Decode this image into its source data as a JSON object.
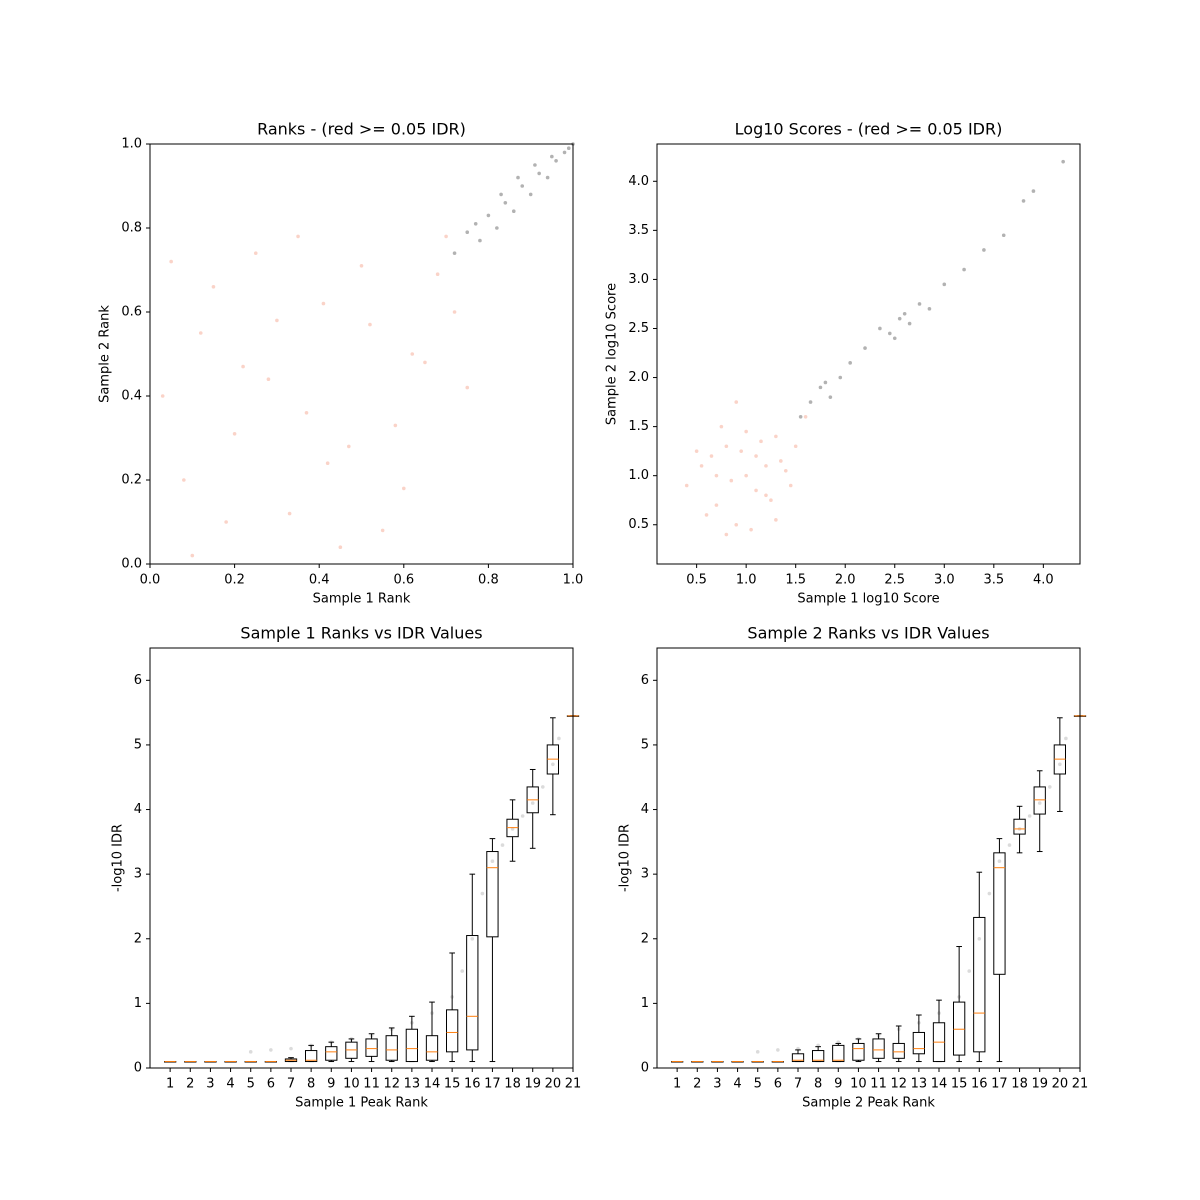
{
  "chart_data": [
    {
      "type": "scatter",
      "title": "Ranks - (red >= 0.05 IDR)",
      "xlabel": "Sample 1 Rank",
      "ylabel": "Sample 2 Rank",
      "xlim": [
        0,
        1
      ],
      "ylim": [
        0,
        1
      ],
      "xticks": [
        {
          "value": 0,
          "label": "0.0"
        },
        0.2,
        0.4,
        0.6,
        0.8,
        {
          "value": 1,
          "label": "1.0"
        }
      ],
      "yticks": [
        {
          "value": 0,
          "label": "0.0"
        },
        0.2,
        0.4,
        0.6,
        0.8,
        {
          "value": 1,
          "label": "1.0"
        }
      ],
      "series": [
        {
          "color": "#f08060",
          "x": [
            0.05,
            0.12,
            0.2,
            0.28,
            0.33,
            0.41,
            0.47,
            0.55,
            0.62,
            0.7,
            0.08,
            0.15,
            0.25,
            0.37,
            0.45,
            0.52,
            0.6,
            0.68,
            0.75,
            0.03,
            0.18,
            0.3,
            0.42,
            0.5,
            0.58,
            0.65,
            0.72,
            0.1,
            0.22,
            0.35
          ],
          "values": [
            0.72,
            0.55,
            0.31,
            0.44,
            0.12,
            0.62,
            0.28,
            0.08,
            0.5,
            0.78,
            0.2,
            0.66,
            0.74,
            0.36,
            0.04,
            0.57,
            0.18,
            0.69,
            0.42,
            0.4,
            0.1,
            0.58,
            0.24,
            0.71,
            0.33,
            0.48,
            0.6,
            0.02,
            0.47,
            0.78
          ]
        },
        {
          "color": "#222222",
          "x": [
            0.72,
            0.75,
            0.78,
            0.8,
            0.82,
            0.84,
            0.86,
            0.88,
            0.9,
            0.92,
            0.94,
            0.96,
            0.98,
            1.0,
            0.77,
            0.83,
            0.87,
            0.91,
            0.95,
            0.99
          ],
          "values": [
            0.74,
            0.79,
            0.77,
            0.83,
            0.8,
            0.86,
            0.84,
            0.9,
            0.88,
            0.93,
            0.92,
            0.96,
            0.98,
            1.0,
            0.81,
            0.88,
            0.92,
            0.95,
            0.97,
            0.99
          ]
        }
      ]
    },
    {
      "type": "scatter",
      "title": "Log10 Scores - (red >= 0.05 IDR)",
      "xlabel": "Sample 1 log10 Score",
      "ylabel": "Sample 2 log10 Score",
      "xlim": [
        0.1,
        4.37
      ],
      "ylim": [
        0.1,
        4.38
      ],
      "xticks": [
        0.5,
        {
          "value": 1,
          "label": "1.0"
        },
        1.5,
        {
          "value": 2,
          "label": "2.0"
        },
        2.5,
        {
          "value": 3,
          "label": "3.0"
        },
        3.5,
        {
          "value": 4,
          "label": "4.0"
        }
      ],
      "yticks": [
        0.5,
        {
          "value": 1,
          "label": "1.0"
        },
        1.5,
        {
          "value": 2,
          "label": "2.0"
        },
        2.5,
        {
          "value": 3,
          "label": "3.0"
        },
        3.5,
        {
          "value": 4,
          "label": "4.0"
        }
      ],
      "series": [
        {
          "color": "#f08060",
          "x": [
            0.4,
            0.55,
            0.7,
            0.8,
            0.9,
            1.0,
            1.1,
            1.2,
            1.3,
            1.4,
            0.6,
            0.75,
            0.85,
            0.95,
            1.05,
            1.15,
            1.25,
            1.35,
            1.5,
            1.6,
            0.5,
            0.9,
            1.1,
            1.3,
            0.7,
            1.0,
            1.2,
            0.8,
            1.45,
            0.65
          ],
          "values": [
            0.9,
            1.1,
            0.7,
            1.3,
            0.5,
            1.0,
            1.2,
            0.8,
            1.4,
            1.05,
            0.6,
            1.5,
            0.95,
            1.25,
            0.45,
            1.35,
            0.75,
            1.15,
            1.3,
            1.6,
            1.25,
            1.75,
            0.85,
            0.55,
            1.0,
            1.45,
            1.1,
            0.4,
            0.9,
            1.2
          ]
        },
        {
          "color": "#222222",
          "x": [
            1.55,
            1.65,
            1.75,
            1.85,
            1.95,
            2.05,
            2.2,
            2.35,
            2.45,
            2.55,
            2.65,
            2.75,
            2.85,
            3.0,
            3.2,
            3.4,
            3.6,
            3.8,
            3.9,
            4.2,
            2.5,
            2.6,
            1.8
          ],
          "values": [
            1.6,
            1.75,
            1.9,
            1.8,
            2.0,
            2.15,
            2.3,
            2.5,
            2.45,
            2.6,
            2.55,
            2.75,
            2.7,
            2.95,
            3.1,
            3.3,
            3.45,
            3.8,
            3.9,
            4.2,
            2.4,
            2.65,
            1.95
          ]
        }
      ]
    },
    {
      "type": "box",
      "title": "Sample 1 Ranks vs IDR Values",
      "xlabel": "Sample 1 Peak Rank",
      "ylabel": "-log10 IDR",
      "xlim": [
        0,
        21
      ],
      "ylim": [
        0,
        6.5
      ],
      "xticks": [
        1,
        2,
        3,
        4,
        5,
        6,
        7,
        8,
        9,
        10,
        11,
        12,
        13,
        14,
        15,
        16,
        17,
        18,
        19,
        20,
        21
      ],
      "yticks": [
        0,
        1,
        2,
        3,
        4,
        5,
        6
      ],
      "box_color": "#000000",
      "median_color": "#ff7f0e",
      "series": [
        {
          "color": "#999999",
          "x": [
            5,
            6,
            7,
            8,
            9,
            10,
            11,
            12,
            13,
            14,
            15,
            15.5,
            16,
            16.5,
            17,
            17.5,
            18,
            18.5,
            19,
            19.5,
            20,
            20.3
          ],
          "values": [
            0.25,
            0.28,
            0.3,
            0.35,
            0.4,
            0.45,
            0.5,
            0.6,
            0.7,
            0.85,
            1.1,
            1.5,
            2.0,
            2.7,
            3.2,
            3.45,
            3.7,
            3.9,
            4.1,
            4.35,
            4.7,
            5.1
          ]
        }
      ],
      "x": [
        1,
        2,
        3,
        4,
        5,
        6,
        7,
        8,
        9,
        10,
        11,
        12,
        13,
        14,
        15,
        16,
        17,
        18,
        19,
        20,
        21
      ],
      "boxes": [
        {
          "low": 0.1,
          "q1": 0.1,
          "median": 0.1,
          "q3": 0.1,
          "high": 0.1
        },
        {
          "low": 0.1,
          "q1": 0.1,
          "median": 0.1,
          "q3": 0.1,
          "high": 0.1
        },
        {
          "low": 0.1,
          "q1": 0.1,
          "median": 0.1,
          "q3": 0.1,
          "high": 0.1
        },
        {
          "low": 0.1,
          "q1": 0.1,
          "median": 0.1,
          "q3": 0.1,
          "high": 0.1
        },
        {
          "low": 0.1,
          "q1": 0.1,
          "median": 0.1,
          "q3": 0.1,
          "high": 0.1
        },
        {
          "low": 0.1,
          "q1": 0.1,
          "median": 0.1,
          "q3": 0.1,
          "high": 0.1
        },
        {
          "low": 0.1,
          "q1": 0.1,
          "median": 0.12,
          "q3": 0.14,
          "high": 0.16
        },
        {
          "low": 0.1,
          "q1": 0.1,
          "median": 0.12,
          "q3": 0.27,
          "high": 0.35
        },
        {
          "low": 0.1,
          "q1": 0.12,
          "median": 0.25,
          "q3": 0.33,
          "high": 0.4
        },
        {
          "low": 0.1,
          "q1": 0.15,
          "median": 0.28,
          "q3": 0.4,
          "high": 0.45
        },
        {
          "low": 0.1,
          "q1": 0.18,
          "median": 0.3,
          "q3": 0.45,
          "high": 0.53
        },
        {
          "low": 0.1,
          "q1": 0.12,
          "median": 0.28,
          "q3": 0.5,
          "high": 0.62
        },
        {
          "low": 0.1,
          "q1": 0.1,
          "median": 0.3,
          "q3": 0.6,
          "high": 0.8
        },
        {
          "low": 0.1,
          "q1": 0.12,
          "median": 0.25,
          "q3": 0.5,
          "high": 1.02
        },
        {
          "low": 0.1,
          "q1": 0.25,
          "median": 0.55,
          "q3": 0.9,
          "high": 1.78
        },
        {
          "low": 0.1,
          "q1": 0.28,
          "median": 0.8,
          "q3": 2.05,
          "high": 3.0
        },
        {
          "low": 0.1,
          "q1": 2.03,
          "median": 3.1,
          "q3": 3.35,
          "high": 3.55
        },
        {
          "low": 3.2,
          "q1": 3.58,
          "median": 3.72,
          "q3": 3.85,
          "high": 4.15
        },
        {
          "low": 3.4,
          "q1": 3.95,
          "median": 4.15,
          "q3": 4.35,
          "high": 4.62
        },
        {
          "low": 3.92,
          "q1": 4.55,
          "median": 4.78,
          "q3": 5.0,
          "high": 5.42
        },
        {
          "low": 5.45,
          "q1": 5.45,
          "median": 5.45,
          "q3": 5.45,
          "high": 5.45
        }
      ]
    },
    {
      "type": "box",
      "title": "Sample 2 Ranks vs IDR Values",
      "xlabel": "Sample 2 Peak Rank",
      "ylabel": "-log10 IDR",
      "xlim": [
        0,
        21
      ],
      "ylim": [
        0,
        6.5
      ],
      "xticks": [
        1,
        2,
        3,
        4,
        5,
        6,
        7,
        8,
        9,
        10,
        11,
        12,
        13,
        14,
        15,
        16,
        17,
        18,
        19,
        20,
        21
      ],
      "yticks": [
        0,
        1,
        2,
        3,
        4,
        5,
        6
      ],
      "box_color": "#000000",
      "median_color": "#ff7f0e",
      "series": [
        {
          "color": "#999999",
          "x": [
            5,
            6,
            7,
            8,
            9,
            10,
            11,
            12,
            13,
            14,
            15,
            15.5,
            16,
            16.5,
            17,
            17.5,
            18,
            18.5,
            19,
            19.5,
            20,
            20.3
          ],
          "values": [
            0.25,
            0.28,
            0.3,
            0.35,
            0.4,
            0.45,
            0.5,
            0.6,
            0.7,
            0.85,
            1.1,
            1.5,
            2.0,
            2.7,
            3.2,
            3.45,
            3.7,
            3.9,
            4.1,
            4.35,
            4.7,
            5.1
          ]
        }
      ],
      "x": [
        1,
        2,
        3,
        4,
        5,
        6,
        7,
        8,
        9,
        10,
        11,
        12,
        13,
        14,
        15,
        16,
        17,
        18,
        19,
        20,
        21
      ],
      "boxes": [
        {
          "low": 0.1,
          "q1": 0.1,
          "median": 0.1,
          "q3": 0.1,
          "high": 0.1
        },
        {
          "low": 0.1,
          "q1": 0.1,
          "median": 0.1,
          "q3": 0.1,
          "high": 0.1
        },
        {
          "low": 0.1,
          "q1": 0.1,
          "median": 0.1,
          "q3": 0.1,
          "high": 0.1
        },
        {
          "low": 0.1,
          "q1": 0.1,
          "median": 0.1,
          "q3": 0.1,
          "high": 0.1
        },
        {
          "low": 0.1,
          "q1": 0.1,
          "median": 0.1,
          "q3": 0.1,
          "high": 0.1
        },
        {
          "low": 0.1,
          "q1": 0.1,
          "median": 0.1,
          "q3": 0.1,
          "high": 0.1
        },
        {
          "low": 0.1,
          "q1": 0.1,
          "median": 0.12,
          "q3": 0.22,
          "high": 0.28
        },
        {
          "low": 0.1,
          "q1": 0.1,
          "median": 0.12,
          "q3": 0.27,
          "high": 0.33
        },
        {
          "low": 0.1,
          "q1": 0.1,
          "median": 0.12,
          "q3": 0.35,
          "high": 0.38
        },
        {
          "low": 0.1,
          "q1": 0.12,
          "median": 0.3,
          "q3": 0.38,
          "high": 0.45
        },
        {
          "low": 0.1,
          "q1": 0.15,
          "median": 0.28,
          "q3": 0.45,
          "high": 0.53
        },
        {
          "low": 0.1,
          "q1": 0.15,
          "median": 0.25,
          "q3": 0.38,
          "high": 0.65
        },
        {
          "low": 0.1,
          "q1": 0.22,
          "median": 0.3,
          "q3": 0.55,
          "high": 0.82
        },
        {
          "low": 0.1,
          "q1": 0.1,
          "median": 0.4,
          "q3": 0.7,
          "high": 1.05
        },
        {
          "low": 0.1,
          "q1": 0.2,
          "median": 0.6,
          "q3": 1.02,
          "high": 1.88
        },
        {
          "low": 0.1,
          "q1": 0.25,
          "median": 0.85,
          "q3": 2.33,
          "high": 3.03
        },
        {
          "low": 0.1,
          "q1": 1.45,
          "median": 3.1,
          "q3": 3.33,
          "high": 3.55
        },
        {
          "low": 3.33,
          "q1": 3.62,
          "median": 3.7,
          "q3": 3.85,
          "high": 4.05
        },
        {
          "low": 3.35,
          "q1": 3.93,
          "median": 4.15,
          "q3": 4.35,
          "high": 4.6
        },
        {
          "low": 3.97,
          "q1": 4.55,
          "median": 4.78,
          "q3": 5.0,
          "high": 5.42
        },
        {
          "low": 5.45,
          "q1": 5.45,
          "median": 5.45,
          "q3": 5.45,
          "high": 5.45
        }
      ]
    }
  ]
}
